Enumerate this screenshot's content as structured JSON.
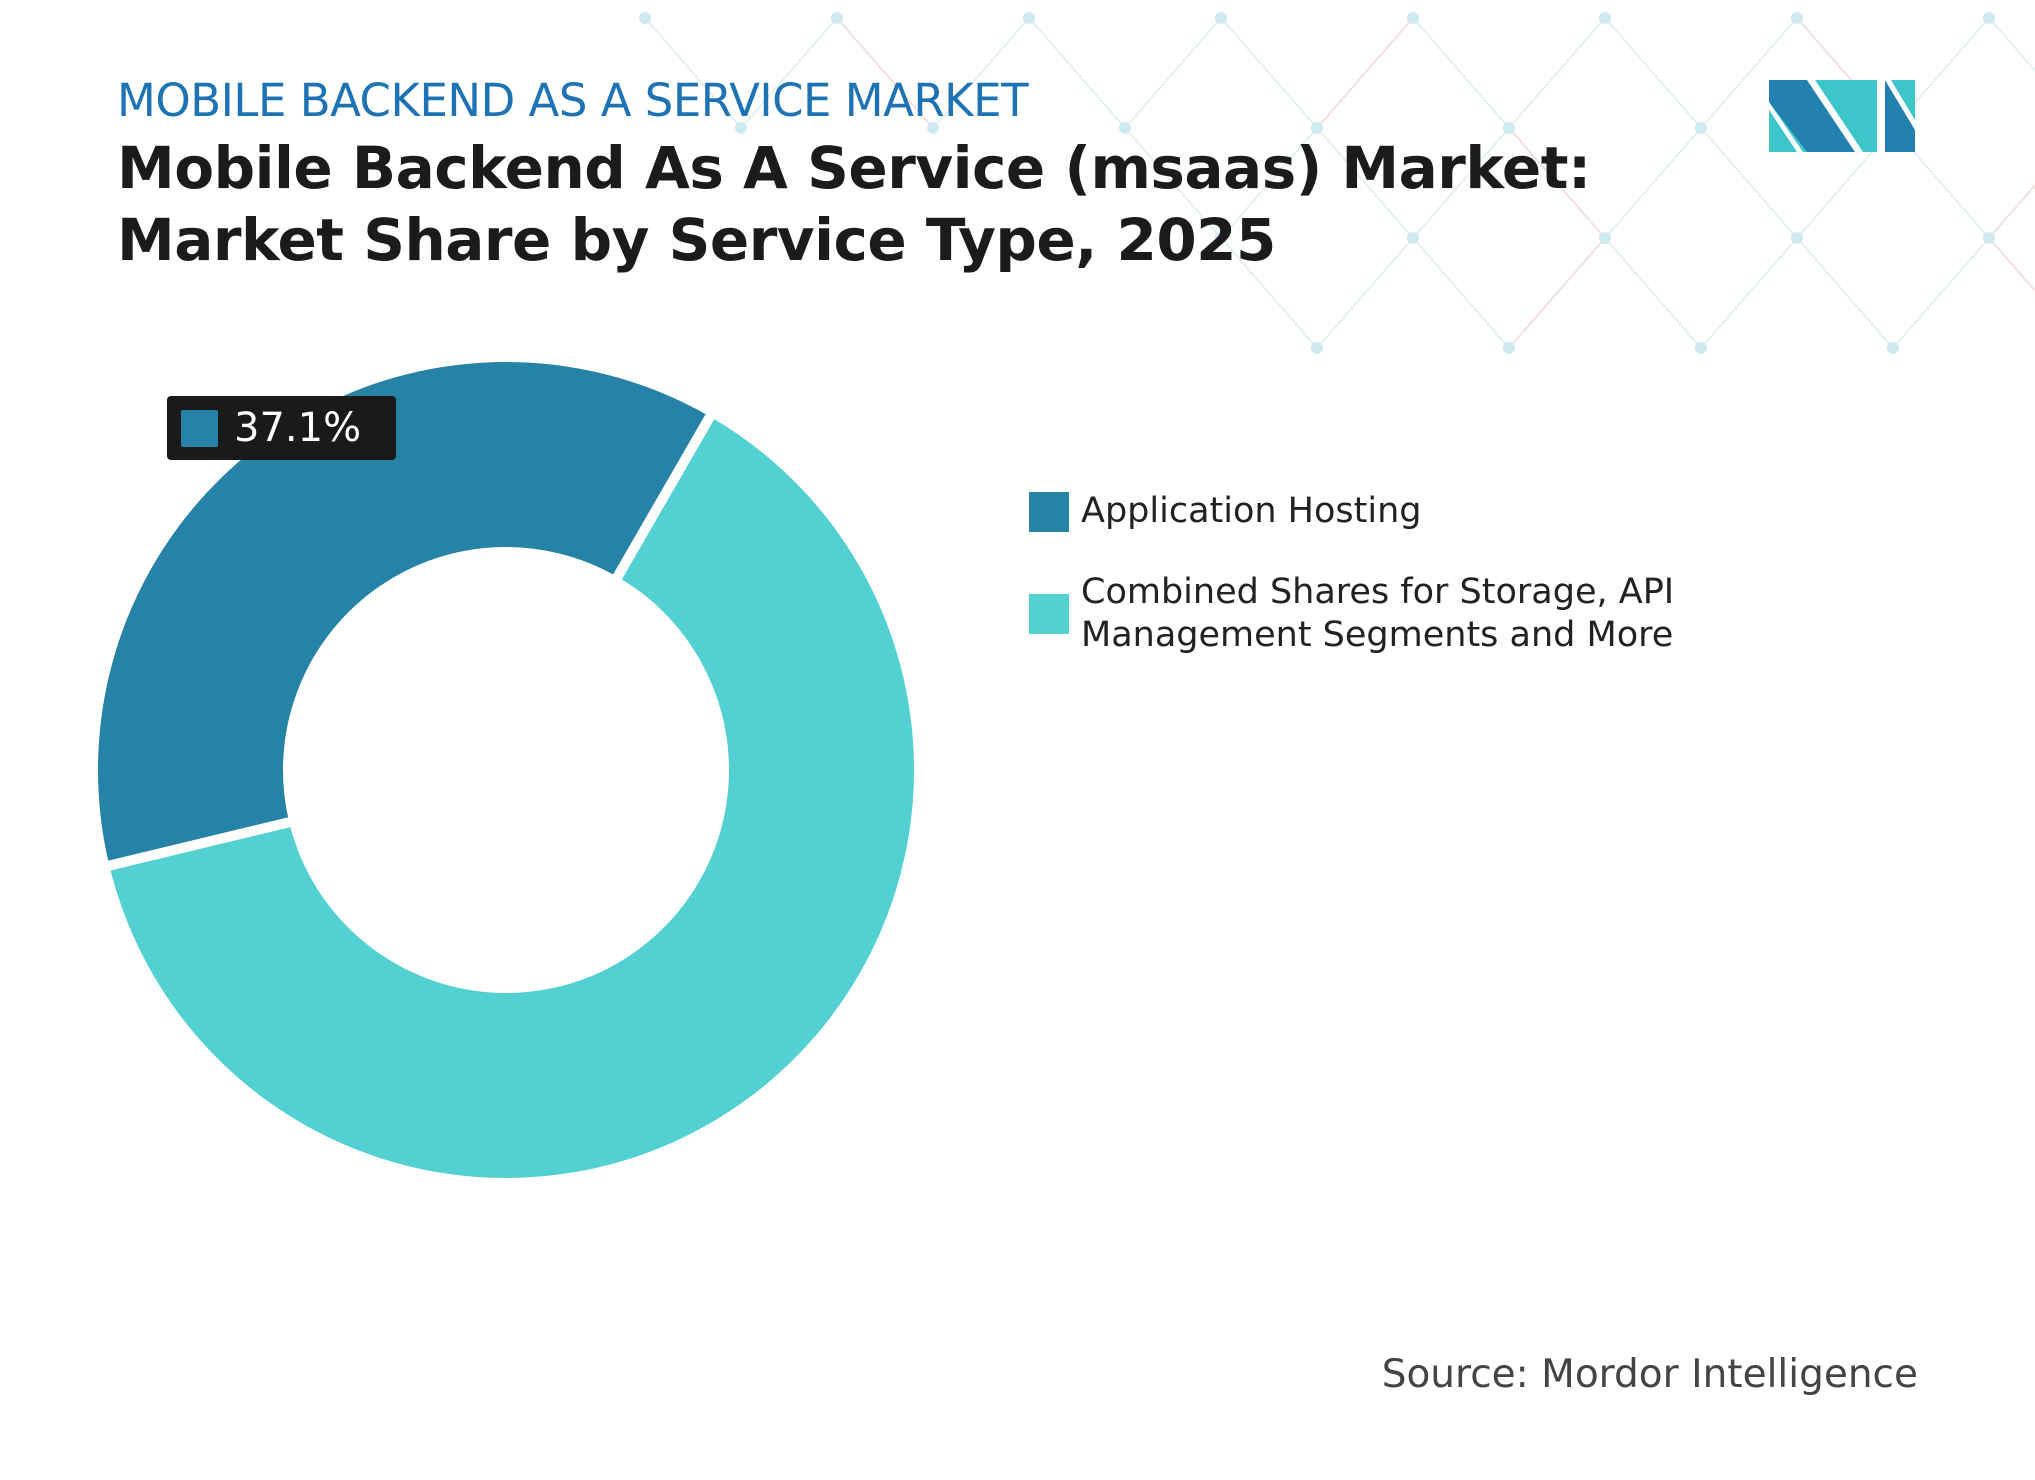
{
  "header": {
    "kicker": "MOBILE BACKEND AS A SERVICE MARKET",
    "title": "Mobile Backend As A Service (msaas) Market: Market Share by Service Type, 2025"
  },
  "logo": {
    "text": "MI",
    "colors": [
      "#2381b0",
      "#3cc6c9"
    ]
  },
  "chart_data": {
    "type": "pie",
    "donut": true,
    "title": "Mobile Backend As A Service (msaas) Market: Market Share by Service Type, 2025",
    "series": [
      {
        "name": "Application Hosting",
        "value": 37.1,
        "color": "#2782a8"
      },
      {
        "name": "Combined Shares for Storage, API Management Segments and More",
        "value": 62.9,
        "color": "#52d0d2"
      }
    ],
    "data_labels": [
      {
        "series": "Application Hosting",
        "text": "37.1%"
      }
    ],
    "legend_position": "right"
  },
  "source": "Source: Mordor Intelligence"
}
